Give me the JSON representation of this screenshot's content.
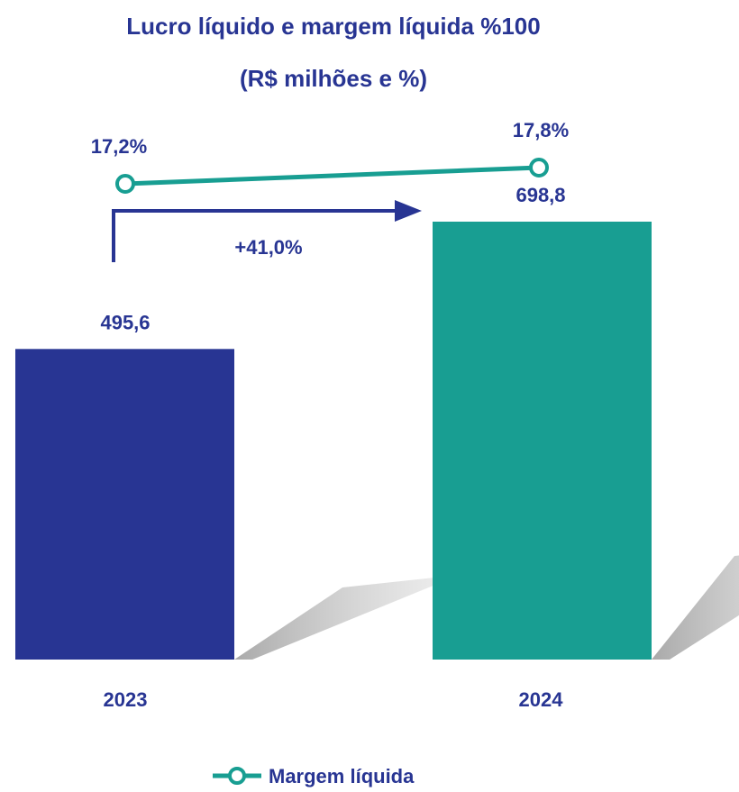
{
  "chart_data": {
    "type": "bar",
    "title": "Lucro líquido e margem líquida %100",
    "subtitle": "(R$ milhões e %)",
    "categories": [
      "2023",
      "2024"
    ],
    "series": [
      {
        "name": "",
        "type": "bar",
        "values": [
          495.6,
          698.8
        ],
        "value_labels": [
          "495,6",
          "698,8"
        ],
        "colors": [
          "#283593",
          "#189E92"
        ]
      },
      {
        "name": "Margem líquida",
        "type": "line",
        "values": [
          17.2,
          17.8
        ],
        "value_labels": [
          "17,2%",
          "17,8%"
        ],
        "color": "#189E92"
      }
    ],
    "growth_label": "+41,0%",
    "legend_position": "bottom-center",
    "grid": false,
    "accent_color": "#283593"
  }
}
